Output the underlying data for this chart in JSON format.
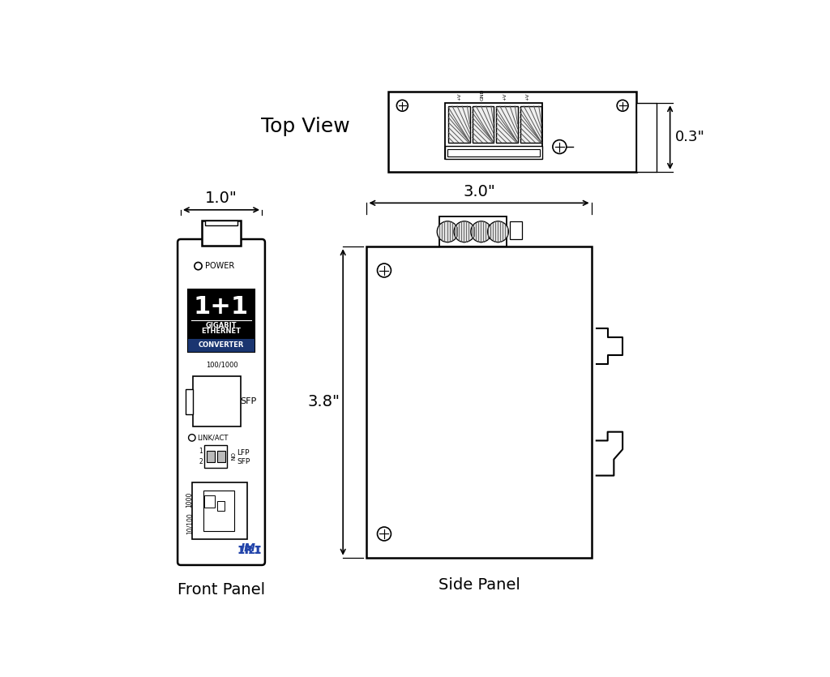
{
  "bg_color": "#ffffff",
  "line_color": "#000000",
  "title": "Top View",
  "label_front": "Front Panel",
  "label_side": "Side Panel",
  "dim_width_front": "1.0\"",
  "dim_width_side": "3.0\"",
  "dim_height_side": "3.8\"",
  "dim_depth_top": "0.3\"",
  "font_family": "DejaVu Sans",
  "blue_color": "#2244aa",
  "lw_main": 1.8,
  "lw_thin": 1.0
}
